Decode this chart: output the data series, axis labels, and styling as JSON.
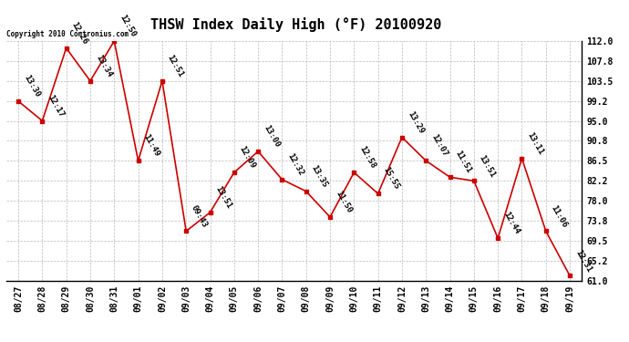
{
  "title": "THSW Index Daily High (°F) 20100920",
  "copyright": "Copyright 2010 Contronius.com",
  "dates": [
    "08/27",
    "08/28",
    "08/29",
    "08/30",
    "08/31",
    "09/01",
    "09/02",
    "09/03",
    "09/04",
    "09/05",
    "09/06",
    "09/07",
    "09/08",
    "09/09",
    "09/10",
    "09/11",
    "09/12",
    "09/13",
    "09/14",
    "09/15",
    "09/16",
    "09/17",
    "09/18",
    "09/19"
  ],
  "values": [
    99.2,
    95.0,
    110.5,
    103.5,
    112.0,
    86.5,
    103.5,
    71.5,
    75.5,
    84.0,
    88.5,
    82.5,
    80.0,
    74.5,
    84.0,
    79.5,
    91.5,
    86.5,
    83.0,
    82.2,
    70.0,
    87.0,
    71.5,
    62.0
  ],
  "time_labels": [
    "13:30",
    "12:17",
    "12:26",
    "13:34",
    "12:50",
    "11:49",
    "12:51",
    "09:43",
    "13:51",
    "12:09",
    "13:00",
    "12:32",
    "13:35",
    "11:50",
    "12:58",
    "15:55",
    "13:29",
    "12:07",
    "11:51",
    "13:51",
    "12:44",
    "13:11",
    "11:06",
    "12:31"
  ],
  "ylim": [
    61.0,
    112.0
  ],
  "yticks": [
    61.0,
    65.2,
    69.5,
    73.8,
    78.0,
    82.2,
    86.5,
    90.8,
    95.0,
    99.2,
    103.5,
    107.8,
    112.0
  ],
  "line_color": "#cc0000",
  "marker_color": "#cc0000",
  "bg_color": "#ffffff",
  "grid_color": "#aaaaaa",
  "title_fontsize": 11,
  "tick_fontsize": 7,
  "annot_fontsize": 6.5
}
